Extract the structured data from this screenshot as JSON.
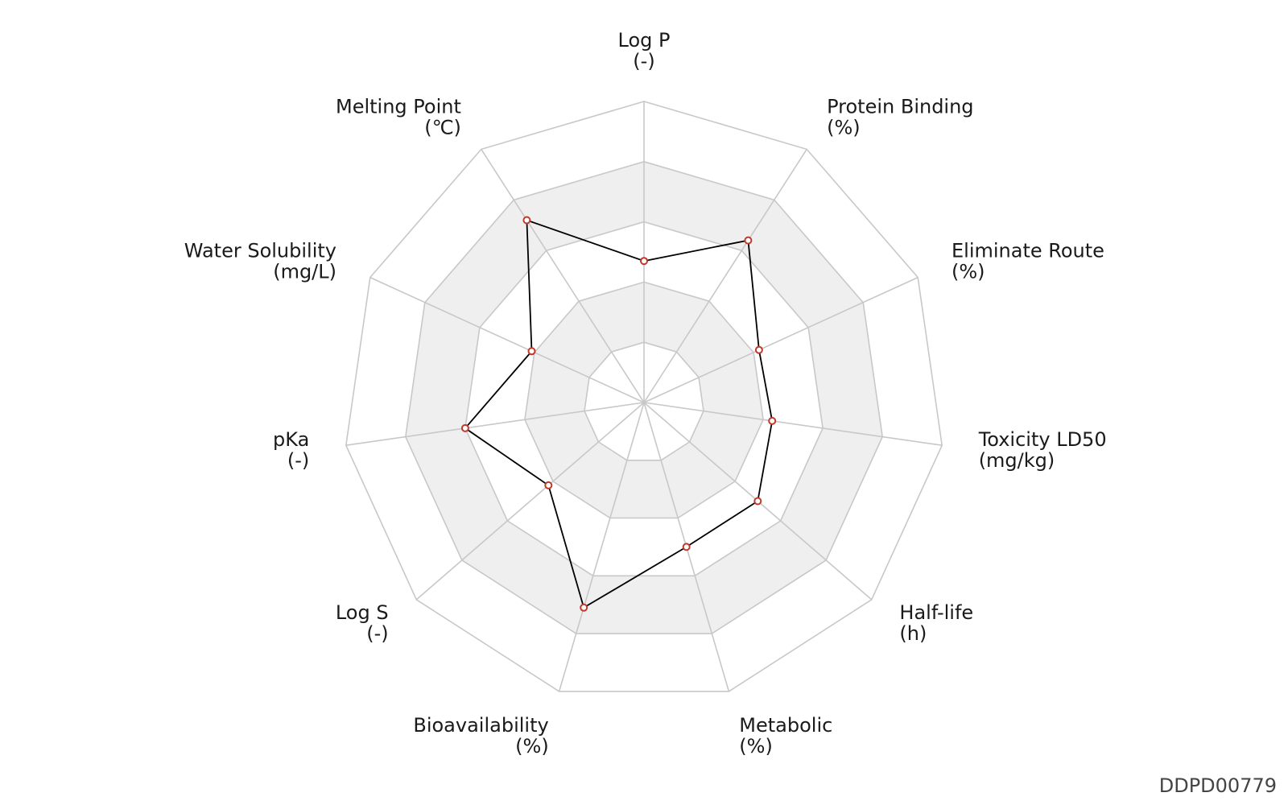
{
  "chart_data": {
    "type": "radar",
    "title": "",
    "rings": 5,
    "value_range": [
      0,
      1
    ],
    "axes": [
      {
        "name": "Log P",
        "unit": "(-)",
        "value": 0.47
      },
      {
        "name": "Protein Binding",
        "unit": "(%)",
        "value": 0.64
      },
      {
        "name": "Eliminate Route",
        "unit": "(%)",
        "value": 0.42
      },
      {
        "name": "Toxicity LD50",
        "unit": "(mg/kg)",
        "value": 0.43
      },
      {
        "name": "Half-life",
        "unit": "(h)",
        "value": 0.5
      },
      {
        "name": "Metabolic",
        "unit": "(%)",
        "value": 0.5
      },
      {
        "name": "Bioavailability",
        "unit": "(%)",
        "value": 0.71
      },
      {
        "name": "Log S",
        "unit": "(-)",
        "value": 0.42
      },
      {
        "name": "pKa",
        "unit": "(-)",
        "value": 0.6
      },
      {
        "name": "Water Solubility",
        "unit": "(mg/L)",
        "value": 0.41
      },
      {
        "name": "Melting Point",
        "unit": "(℃)",
        "value": 0.72
      }
    ],
    "colors": {
      "line": "#000000",
      "marker_edge": "#c0392b",
      "marker_fill": "#ffffff",
      "grid": "#c8c8c8",
      "band": "#efefef"
    }
  },
  "watermark": "DDPD00779"
}
